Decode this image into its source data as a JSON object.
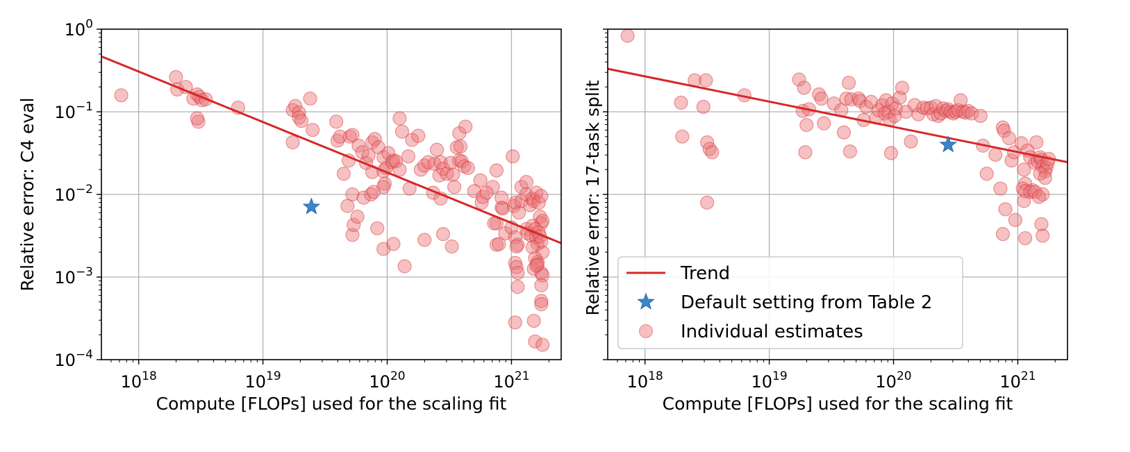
{
  "colors": {
    "trend": "#d62728",
    "scatter_fill": "#e8757a",
    "scatter_edge": "#d62728",
    "star": "#3a86c8",
    "grid": "#b0b0b0"
  },
  "legend": {
    "trend_label": "Trend",
    "default_label": "Default setting from Table 2",
    "individual_label": "Individual estimates"
  },
  "chart_data": [
    {
      "type": "scatter",
      "title": "",
      "xlabel": "Compute [FLOPs] used for the scaling fit",
      "ylabel": "Relative error: C4 eval",
      "xscale": "log",
      "yscale": "log",
      "xlim_exp": [
        17.7,
        21.4
      ],
      "ylim_exp": [
        -4,
        0
      ],
      "xticks": [
        {
          "exp": 18,
          "base": "10",
          "sup": "18"
        },
        {
          "exp": 19,
          "base": "10",
          "sup": "19"
        },
        {
          "exp": 20,
          "base": "10",
          "sup": "20"
        },
        {
          "exp": 21,
          "base": "10",
          "sup": "21"
        }
      ],
      "yticks": [
        {
          "exp": 0,
          "base": "10",
          "sup": "0"
        },
        {
          "exp": -1,
          "base": "10",
          "sup": "−1"
        },
        {
          "exp": -2,
          "base": "10",
          "sup": "−2"
        },
        {
          "exp": -3,
          "base": "10",
          "sup": "−3"
        },
        {
          "exp": -4,
          "base": "10",
          "sup": "−4"
        }
      ],
      "grid": true,
      "trend": {
        "name": "Trend",
        "x_exp": [
          17.7,
          21.4
        ],
        "y_exp": [
          -0.33,
          -2.59
        ]
      },
      "default_point": {
        "name": "Default setting from Table 2",
        "x_exp": 19.39,
        "y_exp": -2.15
      },
      "points": [
        [
          17.86,
          -0.8
        ],
        [
          18.3,
          -0.58
        ],
        [
          18.31,
          -0.73
        ],
        [
          18.38,
          -0.7
        ],
        [
          18.44,
          -0.84
        ],
        [
          18.47,
          -0.79
        ],
        [
          18.49,
          -0.82
        ],
        [
          18.48,
          -1.12
        ],
        [
          18.47,
          -1.08
        ],
        [
          18.51,
          -0.86
        ],
        [
          18.54,
          -0.85
        ],
        [
          18.8,
          -0.95
        ],
        [
          19.24,
          -0.98
        ],
        [
          19.26,
          -0.93
        ],
        [
          19.29,
          -1.01
        ],
        [
          19.29,
          -1.07
        ],
        [
          19.31,
          -1.11
        ],
        [
          19.24,
          -1.37
        ],
        [
          19.38,
          -0.84
        ],
        [
          19.4,
          -1.22
        ],
        [
          19.59,
          -1.12
        ],
        [
          19.6,
          -1.35
        ],
        [
          19.62,
          -1.3
        ],
        [
          19.65,
          -1.75
        ],
        [
          19.7,
          -1.3
        ],
        [
          19.72,
          -1.28
        ],
        [
          19.69,
          -1.59
        ],
        [
          19.72,
          -2.0
        ],
        [
          19.77,
          -1.41
        ],
        [
          19.8,
          -1.49
        ],
        [
          19.83,
          -1.62
        ],
        [
          19.85,
          -1.53
        ],
        [
          19.88,
          -1.37
        ],
        [
          19.9,
          -1.33
        ],
        [
          19.88,
          -1.73
        ],
        [
          19.93,
          -1.43
        ],
        [
          19.97,
          -1.55
        ],
        [
          19.97,
          -1.72
        ],
        [
          19.98,
          -1.87
        ],
        [
          19.97,
          -1.91
        ],
        [
          19.99,
          -1.68
        ],
        [
          20.01,
          -1.5
        ],
        [
          20.04,
          -1.61
        ],
        [
          20.05,
          -1.59
        ],
        [
          20.07,
          -1.6
        ],
        [
          20.1,
          -1.08
        ],
        [
          20.12,
          -1.24
        ],
        [
          20.17,
          -1.54
        ],
        [
          20.18,
          -1.93
        ],
        [
          20.2,
          -1.34
        ],
        [
          20.25,
          -1.29
        ],
        [
          20.27,
          -1.7
        ],
        [
          20.3,
          -1.65
        ],
        [
          20.33,
          -1.61
        ],
        [
          20.38,
          -1.63
        ],
        [
          20.4,
          -1.46
        ],
        [
          20.42,
          -1.77
        ],
        [
          20.43,
          -1.61
        ],
        [
          20.45,
          -1.69
        ],
        [
          20.48,
          -1.75
        ],
        [
          20.51,
          -1.62
        ],
        [
          20.53,
          -1.76
        ],
        [
          20.56,
          -1.43
        ],
        [
          20.58,
          -1.59
        ],
        [
          20.59,
          -1.42
        ],
        [
          20.6,
          -1.6
        ],
        [
          20.62,
          -1.66
        ],
        [
          20.65,
          -1.68
        ],
        [
          20.58,
          -1.26
        ],
        [
          20.63,
          -1.18
        ],
        [
          20.7,
          -1.96
        ],
        [
          20.85,
          -1.91
        ],
        [
          20.88,
          -1.71
        ],
        [
          20.92,
          -2.16
        ],
        [
          20.93,
          -2.17
        ],
        [
          20.75,
          -1.83
        ],
        [
          20.76,
          -2.1
        ],
        [
          20.77,
          -2.03
        ],
        [
          19.68,
          -2.14
        ],
        [
          19.72,
          -2.49
        ],
        [
          19.73,
          -2.37
        ],
        [
          19.76,
          -2.27
        ],
        [
          19.81,
          -2.04
        ],
        [
          19.87,
          -2.0
        ],
        [
          19.89,
          -1.97
        ],
        [
          19.92,
          -2.41
        ],
        [
          19.97,
          -2.66
        ],
        [
          20.05,
          -2.6
        ],
        [
          20.14,
          -2.87
        ],
        [
          20.3,
          -2.55
        ],
        [
          20.1,
          -1.7
        ],
        [
          20.37,
          -1.98
        ],
        [
          20.43,
          -2.05
        ],
        [
          20.45,
          -2.48
        ],
        [
          20.52,
          -2.63
        ],
        [
          20.54,
          -1.91
        ],
        [
          20.8,
          -1.98
        ],
        [
          20.88,
          -2.35
        ],
        [
          20.86,
          -2.35
        ],
        [
          20.88,
          -2.61
        ],
        [
          20.9,
          -2.6
        ],
        [
          20.95,
          -2.47
        ],
        [
          21.0,
          -2.4
        ],
        [
          21.03,
          -2.52
        ],
        [
          21.05,
          -2.61
        ],
        [
          20.92,
          -2.04
        ],
        [
          21.01,
          -1.54
        ],
        [
          21.02,
          -2.14
        ],
        [
          21.03,
          -2.1
        ],
        [
          21.06,
          -2.22
        ],
        [
          21.08,
          -2.08
        ],
        [
          21.08,
          -1.91
        ],
        [
          21.12,
          -1.85
        ],
        [
          21.12,
          -2.0
        ],
        [
          21.15,
          -2.13
        ],
        [
          21.17,
          -2.05
        ],
        [
          21.18,
          -2.08
        ],
        [
          21.2,
          -1.98
        ],
        [
          21.22,
          -2.1
        ],
        [
          21.24,
          -2.02
        ],
        [
          21.23,
          -2.27
        ],
        [
          21.24,
          -2.35
        ],
        [
          21.25,
          -2.32
        ],
        [
          21.12,
          -2.42
        ],
        [
          21.13,
          -2.47
        ],
        [
          21.16,
          -2.5
        ],
        [
          21.17,
          -2.38
        ],
        [
          21.19,
          -2.42
        ],
        [
          21.2,
          -2.52
        ],
        [
          21.21,
          -2.6
        ],
        [
          21.22,
          -2.46
        ],
        [
          21.23,
          -2.51
        ],
        [
          21.25,
          -2.7
        ],
        [
          21.24,
          -2.57
        ],
        [
          21.04,
          -2.63
        ],
        [
          21.03,
          -2.83
        ],
        [
          21.04,
          -2.88
        ],
        [
          21.05,
          -2.95
        ],
        [
          21.05,
          -3.12
        ],
        [
          21.17,
          -2.64
        ],
        [
          21.19,
          -2.77
        ],
        [
          21.18,
          -2.9
        ],
        [
          21.21,
          -2.82
        ],
        [
          21.21,
          -2.85
        ],
        [
          21.24,
          -2.95
        ],
        [
          21.25,
          -2.98
        ],
        [
          21.24,
          -3.1
        ],
        [
          21.2,
          -2.86
        ],
        [
          21.03,
          -3.55
        ],
        [
          21.18,
          -3.53
        ],
        [
          21.24,
          -3.29
        ],
        [
          21.24,
          -3.33
        ],
        [
          21.19,
          -3.78
        ],
        [
          21.25,
          -3.82
        ]
      ]
    },
    {
      "type": "scatter",
      "title": "",
      "xlabel": "Compute [FLOPs] used for the scaling fit",
      "ylabel": "Relative error: 17-task split",
      "xscale": "log",
      "yscale": "log",
      "xlim_exp": [
        17.7,
        21.4
      ],
      "ylim_exp": [
        -4,
        0
      ],
      "xticks": [
        {
          "exp": 18,
          "base": "10",
          "sup": "18"
        },
        {
          "exp": 19,
          "base": "10",
          "sup": "19"
        },
        {
          "exp": 20,
          "base": "10",
          "sup": "20"
        },
        {
          "exp": 21,
          "base": "10",
          "sup": "21"
        }
      ],
      "yticks": [],
      "grid": true,
      "trend": {
        "name": "Trend",
        "x_exp": [
          17.7,
          21.4
        ],
        "y_exp": [
          -0.48,
          -1.61
        ]
      },
      "default_point": {
        "name": "Default setting from Table 2",
        "x_exp": 20.44,
        "y_exp": -1.4
      },
      "points": [
        [
          17.86,
          -0.08
        ],
        [
          18.29,
          -0.89
        ],
        [
          18.3,
          -1.3
        ],
        [
          18.4,
          -0.62
        ],
        [
          18.49,
          -0.62
        ],
        [
          18.47,
          -0.94
        ],
        [
          18.5,
          -1.37
        ],
        [
          18.52,
          -1.45
        ],
        [
          18.54,
          -1.49
        ],
        [
          18.5,
          -2.1
        ],
        [
          18.8,
          -0.8
        ],
        [
          19.24,
          -0.61
        ],
        [
          19.28,
          -0.71
        ],
        [
          19.27,
          -0.99
        ],
        [
          19.3,
          -1.16
        ],
        [
          19.32,
          -0.97
        ],
        [
          19.29,
          -1.49
        ],
        [
          19.4,
          -0.79
        ],
        [
          19.42,
          -0.84
        ],
        [
          19.44,
          -1.14
        ],
        [
          19.52,
          -0.9
        ],
        [
          19.58,
          -0.98
        ],
        [
          19.6,
          -1.25
        ],
        [
          19.62,
          -0.84
        ],
        [
          19.64,
          -0.65
        ],
        [
          19.66,
          -0.85
        ],
        [
          19.65,
          -1.48
        ],
        [
          19.72,
          -0.84
        ],
        [
          19.73,
          -0.87
        ],
        [
          19.76,
          -1.1
        ],
        [
          19.78,
          -0.94
        ],
        [
          19.82,
          -0.88
        ],
        [
          19.86,
          -1.07
        ],
        [
          19.88,
          -0.98
        ],
        [
          19.91,
          -0.92
        ],
        [
          19.93,
          -1.02
        ],
        [
          19.94,
          -0.86
        ],
        [
          19.96,
          -1.0
        ],
        [
          19.97,
          -1.1
        ],
        [
          19.99,
          -0.9
        ],
        [
          20.01,
          -1.05
        ],
        [
          19.98,
          -1.5
        ],
        [
          20.02,
          -0.96
        ],
        [
          20.05,
          -0.83
        ],
        [
          20.07,
          -0.71
        ],
        [
          20.1,
          -1.0
        ],
        [
          20.14,
          -1.36
        ],
        [
          20.17,
          -0.92
        ],
        [
          20.2,
          -1.03
        ],
        [
          20.24,
          -0.95
        ],
        [
          20.27,
          -0.96
        ],
        [
          20.3,
          -0.95
        ],
        [
          20.32,
          -1.03
        ],
        [
          20.34,
          -0.93
        ],
        [
          20.36,
          -1.05
        ],
        [
          20.38,
          -1.02
        ],
        [
          20.4,
          -0.96
        ],
        [
          20.42,
          -0.99
        ],
        [
          20.44,
          -0.97
        ],
        [
          20.46,
          -1.0
        ],
        [
          20.48,
          -1.02
        ],
        [
          20.5,
          -1.0
        ],
        [
          20.52,
          -0.98
        ],
        [
          20.54,
          -0.86
        ],
        [
          20.56,
          -1.0
        ],
        [
          20.58,
          -1.01
        ],
        [
          20.6,
          -0.99
        ],
        [
          20.63,
          -1.02
        ],
        [
          20.7,
          -1.05
        ],
        [
          20.72,
          -1.41
        ],
        [
          20.75,
          -1.75
        ],
        [
          20.82,
          -1.52
        ],
        [
          20.86,
          -1.93
        ],
        [
          20.88,
          -2.48
        ],
        [
          20.9,
          -2.18
        ],
        [
          20.88,
          -1.19
        ],
        [
          20.89,
          -1.23
        ],
        [
          20.93,
          -1.32
        ],
        [
          20.95,
          -1.59
        ],
        [
          20.97,
          -1.49
        ],
        [
          20.98,
          -2.31
        ],
        [
          21.03,
          -1.38
        ],
        [
          21.05,
          -1.7
        ],
        [
          21.06,
          -1.87
        ],
        [
          21.05,
          -2.08
        ],
        [
          21.04,
          -1.93
        ],
        [
          21.06,
          -1.96
        ],
        [
          21.08,
          -1.47
        ],
        [
          21.1,
          -1.55
        ],
        [
          21.12,
          -1.95
        ],
        [
          21.14,
          -1.62
        ],
        [
          21.15,
          -1.37
        ],
        [
          21.16,
          -1.6
        ],
        [
          21.18,
          -1.55
        ],
        [
          21.19,
          -1.58
        ],
        [
          21.2,
          -1.66
        ],
        [
          21.22,
          -1.72
        ],
        [
          21.23,
          -1.68
        ],
        [
          21.24,
          -1.62
        ],
        [
          21.25,
          -1.57
        ],
        [
          21.18,
          -1.75
        ],
        [
          21.22,
          -1.8
        ],
        [
          21.2,
          -2.0
        ],
        [
          21.1,
          -1.97
        ],
        [
          21.06,
          -2.53
        ],
        [
          21.14,
          -1.97
        ],
        [
          21.17,
          -2.03
        ],
        [
          21.19,
          -2.36
        ],
        [
          21.2,
          -2.5
        ]
      ]
    }
  ]
}
